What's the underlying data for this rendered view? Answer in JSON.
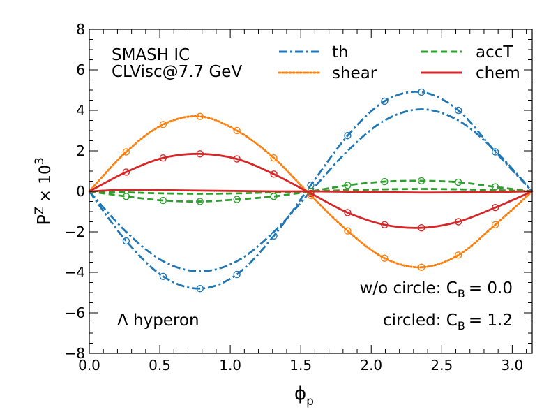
{
  "chart_data": {
    "type": "line",
    "xlabel": "ϕ",
    "xlabel_sub": "p",
    "ylabel": "P",
    "ylabel_sup": "Z",
    "ylabel_suffix": "× 10",
    "ylabel_suffix_sup": "3",
    "xlim": [
      0.0,
      3.1416
    ],
    "ylim": [
      -8,
      8
    ],
    "x_ticks": [
      0.0,
      0.5,
      1.0,
      1.5,
      2.0,
      2.5,
      3.0
    ],
    "x_tick_labels": [
      "0.0",
      "0.5",
      "1.0",
      "1.5",
      "2.0",
      "2.5",
      "3.0"
    ],
    "y_ticks": [
      -8,
      -6,
      -4,
      -2,
      0,
      2,
      4,
      6,
      8
    ],
    "y_tick_labels": [
      "−8",
      "−6",
      "−4",
      "−2",
      "0",
      "2",
      "4",
      "6",
      "8"
    ],
    "annotations": {
      "model_line1": "SMASH IC",
      "model_line2": "CLVisc@7.7 GeV",
      "particle": "Λ hyperon",
      "wo_circle_prefix": "w/o circle: C",
      "wo_circle_sub": "B",
      "wo_circle_value": "= 0.0",
      "circled_prefix": "circled: C",
      "circled_sub": "B",
      "circled_value": "= 1.2"
    },
    "legend_position": "top-right",
    "series": [
      {
        "name": "th",
        "color": "#1f77b4",
        "style": "dashdot",
        "x": [
          0.0,
          0.2618,
          0.5236,
          0.7854,
          1.0472,
          1.309,
          1.5708,
          1.8326,
          2.0944,
          2.3562,
          2.618,
          2.8798,
          3.1416
        ],
        "values_cb0": [
          0.0,
          -2.0,
          -3.45,
          -3.95,
          -3.45,
          -2.0,
          0.0,
          2.0,
          3.5,
          4.05,
          3.5,
          2.0,
          0.0
        ],
        "values_cb12": [
          0.0,
          -2.45,
          -4.2,
          -4.8,
          -4.1,
          -2.2,
          0.3,
          2.75,
          4.45,
          4.9,
          4.0,
          1.95,
          0.0
        ]
      },
      {
        "name": "shear",
        "color": "#ff7f0e",
        "style": "dotted",
        "x": [
          0.0,
          0.2618,
          0.5236,
          0.7854,
          1.0472,
          1.309,
          1.5708,
          1.8326,
          2.0944,
          2.3562,
          2.618,
          2.8798,
          3.1416
        ],
        "values_cb0": [
          0.0,
          1.95,
          3.3,
          3.7,
          3.0,
          1.65,
          -0.2,
          -1.95,
          -3.3,
          -3.75,
          -3.15,
          -1.65,
          0.0
        ],
        "values_cb12": [
          0.0,
          1.95,
          3.3,
          3.7,
          3.0,
          1.65,
          -0.2,
          -1.95,
          -3.3,
          -3.75,
          -3.15,
          -1.65,
          0.0
        ]
      },
      {
        "name": "accT",
        "color": "#2ca02c",
        "style": "dashed",
        "x": [
          0.0,
          0.2618,
          0.5236,
          0.7854,
          1.0472,
          1.309,
          1.5708,
          1.8326,
          2.0944,
          2.3562,
          2.618,
          2.8798,
          3.1416
        ],
        "values_cb0": [
          0.0,
          -0.05,
          -0.1,
          -0.12,
          -0.1,
          -0.05,
          0.0,
          0.06,
          0.1,
          0.12,
          0.1,
          0.06,
          0.0
        ],
        "values_cb12": [
          0.0,
          -0.25,
          -0.45,
          -0.5,
          -0.4,
          -0.25,
          0.0,
          0.3,
          0.48,
          0.52,
          0.45,
          0.22,
          0.0
        ]
      },
      {
        "name": "chem",
        "color": "#d62728",
        "style": "solid",
        "x": [
          0.0,
          0.2618,
          0.5236,
          0.7854,
          1.0472,
          1.309,
          1.5708,
          1.8326,
          2.0944,
          2.3562,
          2.618,
          2.8798,
          3.1416
        ],
        "values_cb0": [
          0.0,
          0.08,
          0.06,
          0.04,
          0.02,
          0.0,
          0.0,
          -0.02,
          -0.04,
          -0.06,
          -0.05,
          -0.03,
          0.0
        ],
        "values_cb12": [
          0.0,
          0.95,
          1.65,
          1.85,
          1.6,
          0.85,
          -0.1,
          -1.05,
          -1.65,
          -1.8,
          -1.5,
          -0.8,
          0.0
        ]
      }
    ]
  }
}
